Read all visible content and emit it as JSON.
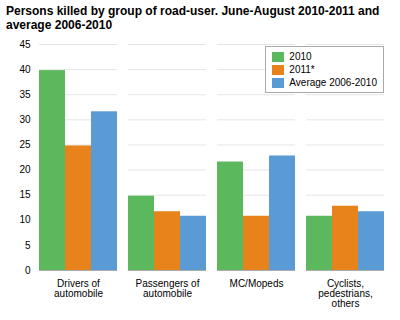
{
  "chart_data": {
    "type": "bar",
    "title": "Persons killed by group of road-user. June-August 2010-2011 and\naverage 2006-2010",
    "categories": [
      "Drivers of\nautomobile",
      "Passengers of\nautomobile",
      "MC/Mopeds",
      "Cyclists,\npedestrians,\nothers"
    ],
    "series": [
      {
        "name": "2010",
        "color": "#5cb85c",
        "values": [
          39.8,
          14.8,
          21.6,
          10.8
        ]
      },
      {
        "name": "2011*",
        "color": "#e8821a",
        "values": [
          24.8,
          11.7,
          10.8,
          12.8
        ]
      },
      {
        "name": "Average 2006-2010",
        "color": "#5b9bd5",
        "values": [
          31.6,
          10.8,
          22.8,
          11.7
        ]
      }
    ],
    "ylim": [
      0,
      45
    ],
    "yticks": [
      0,
      5,
      10,
      15,
      20,
      25,
      30,
      35,
      40,
      45
    ],
    "grid": true,
    "legend": "upper right"
  }
}
